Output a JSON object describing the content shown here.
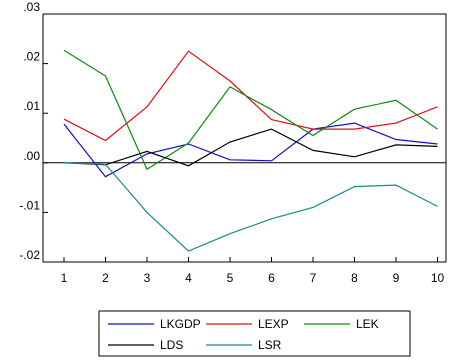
{
  "chart_data": {
    "type": "line",
    "title": "",
    "xlabel": "",
    "ylabel": "",
    "categories": [
      "1",
      "2",
      "3",
      "4",
      "5",
      "6",
      "7",
      "8",
      "9",
      "10"
    ],
    "ylim": [
      -0.02,
      0.03
    ],
    "yticks": [
      -0.02,
      -0.01,
      0.0,
      0.01,
      0.02,
      0.03
    ],
    "ytick_labels": [
      "-.02",
      "-.01",
      ".00",
      ".01",
      ".02",
      ".03"
    ],
    "zero_line": true,
    "grid": false,
    "legend_position": "bottom",
    "series": [
      {
        "name": "LKGDP",
        "color": "#1010cc",
        "values": [
          0.0078,
          -0.0028,
          0.0018,
          0.0038,
          0.0006,
          0.0004,
          0.0068,
          0.008,
          0.0047,
          0.0038
        ]
      },
      {
        "name": "LEXP",
        "color": "#e01010",
        "values": [
          0.0088,
          0.0045,
          0.0113,
          0.0225,
          0.0165,
          0.0087,
          0.0068,
          0.0068,
          0.008,
          0.0113
        ]
      },
      {
        "name": "LEK",
        "color": "#108a10",
        "values": [
          0.0227,
          0.0175,
          -0.0013,
          0.004,
          0.0153,
          0.0107,
          0.0055,
          0.0108,
          0.0126,
          0.0068
        ]
      },
      {
        "name": "LDS",
        "color": "#000000",
        "values": [
          0.0,
          -0.0004,
          0.0023,
          -0.0006,
          0.0042,
          0.0068,
          0.0025,
          0.0012,
          0.0036,
          0.0033
        ]
      },
      {
        "name": "LSR",
        "color": "#1a8a8a",
        "values": [
          0.0,
          -0.0003,
          -0.01,
          -0.0178,
          -0.0143,
          -0.0113,
          -0.009,
          -0.0048,
          -0.0045,
          -0.0088
        ]
      }
    ]
  }
}
